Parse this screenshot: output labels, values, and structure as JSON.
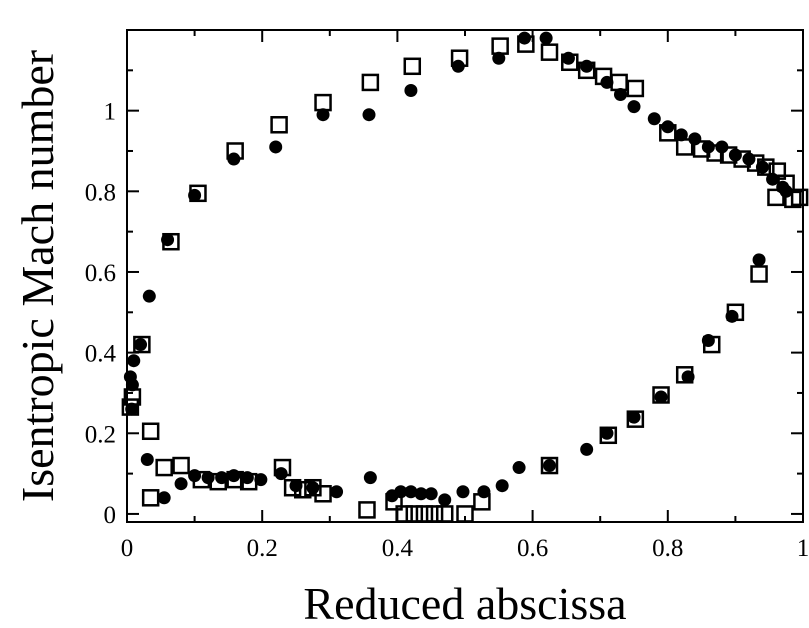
{
  "chart_data": {
    "type": "scatter",
    "title": "",
    "xlabel": "Reduced abscissa",
    "ylabel": "Isentropic Mach number",
    "xlim": [
      0,
      1
    ],
    "ylim": [
      -0.02,
      1.2
    ],
    "grid": false,
    "legend": "none",
    "x_ticks": [
      0,
      0.2,
      0.4,
      0.6,
      0.8,
      1
    ],
    "x_tick_labels": [
      "0",
      "0.2",
      "0.4",
      "0.6",
      "0.8",
      "1"
    ],
    "y_ticks": [
      0,
      0.2,
      0.4,
      0.6,
      0.8,
      1
    ],
    "y_tick_labels": [
      "0",
      "0.2",
      "0.4",
      "0.6",
      "0.8",
      "1"
    ],
    "series": [
      {
        "marker": "circle-filled",
        "color": "#000000",
        "points": [
          [
            0.005,
            0.34
          ],
          [
            0.008,
            0.32
          ],
          [
            0.007,
            0.26
          ],
          [
            0.01,
            0.38
          ],
          [
            0.02,
            0.42
          ],
          [
            0.033,
            0.54
          ],
          [
            0.06,
            0.68
          ],
          [
            0.1,
            0.79
          ],
          [
            0.158,
            0.88
          ],
          [
            0.22,
            0.91
          ],
          [
            0.29,
            0.99
          ],
          [
            0.358,
            0.99
          ],
          [
            0.42,
            1.05
          ],
          [
            0.49,
            1.11
          ],
          [
            0.55,
            1.13
          ],
          [
            0.588,
            1.18
          ],
          [
            0.62,
            1.18
          ],
          [
            0.653,
            1.13
          ],
          [
            0.68,
            1.11
          ],
          [
            0.71,
            1.07
          ],
          [
            0.73,
            1.04
          ],
          [
            0.75,
            1.01
          ],
          [
            0.78,
            0.98
          ],
          [
            0.8,
            0.96
          ],
          [
            0.82,
            0.94
          ],
          [
            0.84,
            0.93
          ],
          [
            0.86,
            0.91
          ],
          [
            0.88,
            0.91
          ],
          [
            0.9,
            0.89
          ],
          [
            0.92,
            0.88
          ],
          [
            0.94,
            0.86
          ],
          [
            0.955,
            0.83
          ],
          [
            0.97,
            0.81
          ],
          [
            0.975,
            0.8
          ],
          [
            0.935,
            0.63
          ],
          [
            0.895,
            0.49
          ],
          [
            0.86,
            0.43
          ],
          [
            0.83,
            0.34
          ],
          [
            0.79,
            0.29
          ],
          [
            0.75,
            0.24
          ],
          [
            0.71,
            0.2
          ],
          [
            0.68,
            0.16
          ],
          [
            0.625,
            0.12
          ],
          [
            0.58,
            0.115
          ],
          [
            0.555,
            0.07
          ],
          [
            0.528,
            0.055
          ],
          [
            0.497,
            0.055
          ],
          [
            0.47,
            0.035
          ],
          [
            0.45,
            0.05
          ],
          [
            0.435,
            0.05
          ],
          [
            0.42,
            0.055
          ],
          [
            0.405,
            0.055
          ],
          [
            0.392,
            0.045
          ],
          [
            0.36,
            0.09
          ],
          [
            0.31,
            0.055
          ],
          [
            0.275,
            0.065
          ],
          [
            0.25,
            0.07
          ],
          [
            0.228,
            0.1
          ],
          [
            0.198,
            0.085
          ],
          [
            0.178,
            0.09
          ],
          [
            0.158,
            0.095
          ],
          [
            0.14,
            0.09
          ],
          [
            0.12,
            0.09
          ],
          [
            0.1,
            0.095
          ],
          [
            0.08,
            0.075
          ],
          [
            0.055,
            0.04
          ],
          [
            0.03,
            0.135
          ]
        ]
      },
      {
        "marker": "square-open",
        "color": "#000000",
        "points": [
          [
            0.005,
            0.265
          ],
          [
            0.008,
            0.29
          ],
          [
            0.022,
            0.42
          ],
          [
            0.065,
            0.675
          ],
          [
            0.105,
            0.795
          ],
          [
            0.16,
            0.9
          ],
          [
            0.225,
            0.965
          ],
          [
            0.29,
            1.02
          ],
          [
            0.36,
            1.07
          ],
          [
            0.422,
            1.11
          ],
          [
            0.492,
            1.13
          ],
          [
            0.552,
            1.16
          ],
          [
            0.59,
            1.165
          ],
          [
            0.625,
            1.145
          ],
          [
            0.655,
            1.12
          ],
          [
            0.68,
            1.1
          ],
          [
            0.705,
            1.085
          ],
          [
            0.728,
            1.07
          ],
          [
            0.752,
            1.055
          ],
          [
            0.8,
            0.945
          ],
          [
            0.825,
            0.91
          ],
          [
            0.85,
            0.905
          ],
          [
            0.87,
            0.895
          ],
          [
            0.89,
            0.89
          ],
          [
            0.91,
            0.88
          ],
          [
            0.93,
            0.87
          ],
          [
            0.945,
            0.86
          ],
          [
            0.962,
            0.85
          ],
          [
            0.975,
            0.82
          ],
          [
            0.985,
            0.78
          ],
          [
            0.995,
            0.785
          ],
          [
            0.96,
            0.785
          ],
          [
            0.935,
            0.595
          ],
          [
            0.9,
            0.5
          ],
          [
            0.865,
            0.42
          ],
          [
            0.825,
            0.345
          ],
          [
            0.79,
            0.295
          ],
          [
            0.752,
            0.235
          ],
          [
            0.712,
            0.195
          ],
          [
            0.625,
            0.12
          ],
          [
            0.525,
            0.03
          ],
          [
            0.5,
            0.0
          ],
          [
            0.47,
            0.0
          ],
          [
            0.455,
            0.0
          ],
          [
            0.44,
            0.0
          ],
          [
            0.425,
            0.0
          ],
          [
            0.41,
            0.0
          ],
          [
            0.395,
            0.03
          ],
          [
            0.355,
            0.01
          ],
          [
            0.29,
            0.05
          ],
          [
            0.275,
            0.065
          ],
          [
            0.26,
            0.06
          ],
          [
            0.245,
            0.065
          ],
          [
            0.23,
            0.115
          ],
          [
            0.18,
            0.08
          ],
          [
            0.16,
            0.085
          ],
          [
            0.135,
            0.08
          ],
          [
            0.11,
            0.085
          ],
          [
            0.08,
            0.12
          ],
          [
            0.055,
            0.115
          ],
          [
            0.035,
            0.04
          ],
          [
            0.035,
            0.205
          ]
        ]
      }
    ]
  }
}
